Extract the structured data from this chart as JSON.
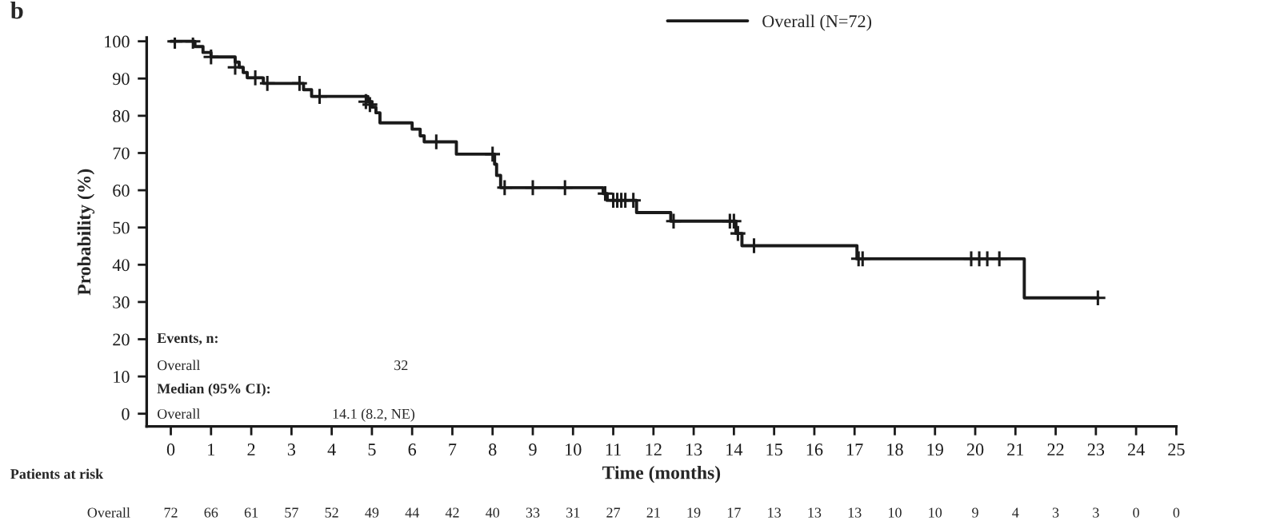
{
  "chart_data": {
    "type": "step",
    "xlabel": "Time (months)",
    "ylabel": "Probability (%)",
    "xlim": [
      -0.6,
      25
    ],
    "xticks": [
      0,
      1,
      2,
      3,
      4,
      5,
      6,
      7,
      8,
      9,
      10,
      11,
      12,
      13,
      14,
      15,
      16,
      17,
      18,
      19,
      20,
      21,
      22,
      23,
      24,
      25
    ],
    "ylim": [
      -3.4,
      101
    ],
    "yticks": [
      0,
      10,
      20,
      30,
      40,
      50,
      60,
      70,
      80,
      90,
      100
    ],
    "grid": false,
    "legend": "top right",
    "series": [
      {
        "name": "Overall (N=72)",
        "color": "#1a1a1a",
        "x": [
          0,
          0.6,
          0.8,
          1.0,
          1.6,
          1.7,
          1.8,
          1.9,
          2.3,
          3.3,
          3.5,
          4.9,
          5.0,
          5.1,
          5.2,
          6.0,
          6.2,
          6.3,
          7.1,
          8.05,
          8.1,
          8.2,
          10.75,
          10.85,
          11.58,
          12.43,
          14.05,
          14.2,
          17.06,
          21.22,
          23.06
        ],
        "values": [
          100,
          98.6,
          97,
          95.8,
          94.4,
          93,
          91.6,
          90.2,
          88.7,
          87,
          85.2,
          83.8,
          82.3,
          80.8,
          78.1,
          76.4,
          74.6,
          73,
          69.7,
          67,
          64,
          60.7,
          59.1,
          57.3,
          54,
          51.7,
          48.4,
          45.1,
          41.6,
          31.1,
          31.1
        ]
      },
      {
        "color": "#1a1a1a",
        "type": "scatter",
        "marker": "cross",
        "x": [
          0.1,
          0.55,
          1.0,
          1.6,
          2.1,
          2.4,
          3.2,
          3.7,
          4.85,
          4.95,
          6.6,
          8.0,
          8.3,
          9.0,
          9.8,
          10.8,
          11.0,
          11.1,
          11.2,
          11.3,
          11.5,
          12.5,
          13.9,
          14.0,
          14.1,
          14.5,
          17.1,
          17.2,
          19.9,
          20.1,
          20.3,
          20.6,
          23.05
        ],
        "values": [
          100,
          100,
          95.8,
          93,
          90.2,
          88.7,
          88.7,
          85.2,
          83.8,
          83,
          73,
          69.7,
          60.7,
          60.7,
          60.7,
          59.1,
          57.3,
          57.3,
          57.3,
          57.3,
          57.3,
          51.7,
          51.7,
          51.7,
          48.4,
          45.1,
          41.6,
          41.6,
          41.6,
          41.6,
          41.6,
          41.6,
          31.1
        ]
      }
    ],
    "annotations": [
      "b",
      "Events, n:",
      "Overall",
      "32",
      "Median (95% CI):",
      "Overall",
      "14.1 (8.2, NE)",
      "Patients at risk",
      "Overall",
      "72",
      "66",
      "61",
      "57",
      "52",
      "49",
      "44",
      "42",
      "40",
      "33",
      "31",
      "27",
      "21",
      "19",
      "17",
      "13",
      "13",
      "13",
      "10",
      "10",
      "9",
      "4",
      "3",
      "3",
      "0",
      "0"
    ]
  }
}
